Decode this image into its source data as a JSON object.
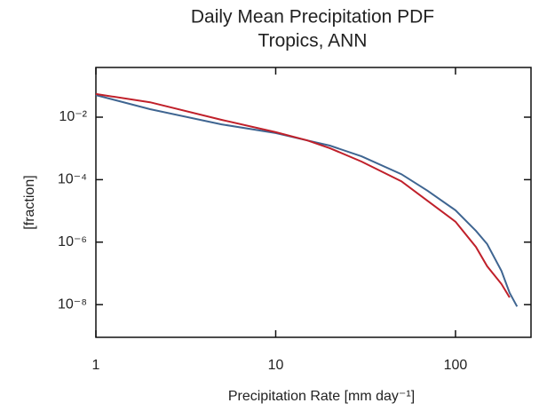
{
  "chart_data": {
    "type": "line",
    "title": [
      "Daily Mean Precipitation PDF",
      "Tropics, ANN"
    ],
    "xlabel": "Precipitation Rate [mm day⁻¹]",
    "ylabel": "[fraction]",
    "xscale": "log",
    "yscale": "log",
    "xlim": [
      1,
      263
    ],
    "ylim": [
      9e-10,
      0.39
    ],
    "xticks": [
      1,
      10,
      100
    ],
    "yticks": [
      {
        "value": 0.01,
        "label": "10⁻²"
      },
      {
        "value": 0.0001,
        "label": "10⁻⁴"
      },
      {
        "value": 1e-06,
        "label": "10⁻⁶"
      },
      {
        "value": 1e-08,
        "label": "10⁻⁸"
      }
    ],
    "x": [
      1,
      2,
      5,
      10,
      15,
      20,
      30,
      50,
      70,
      100,
      130,
      150,
      180,
      200,
      220
    ],
    "series": [
      {
        "color": "#3f6591",
        "values": [
          0.051,
          0.018,
          0.0059,
          0.0031,
          0.0018,
          0.00123,
          0.00056,
          0.00015,
          4.4e-05,
          1.05e-05,
          2.3e-06,
          8.7e-07,
          1.2e-07,
          2.4e-08,
          8.7e-09
        ]
      },
      {
        "color": "#c0202a",
        "values": [
          0.055,
          0.03,
          0.0082,
          0.0033,
          0.0018,
          0.00102,
          0.00038,
          8.9e-05,
          2.1e-05,
          4.5e-06,
          7e-07,
          1.7e-07,
          4.6e-08,
          1.7e-08,
          null
        ]
      }
    ]
  }
}
